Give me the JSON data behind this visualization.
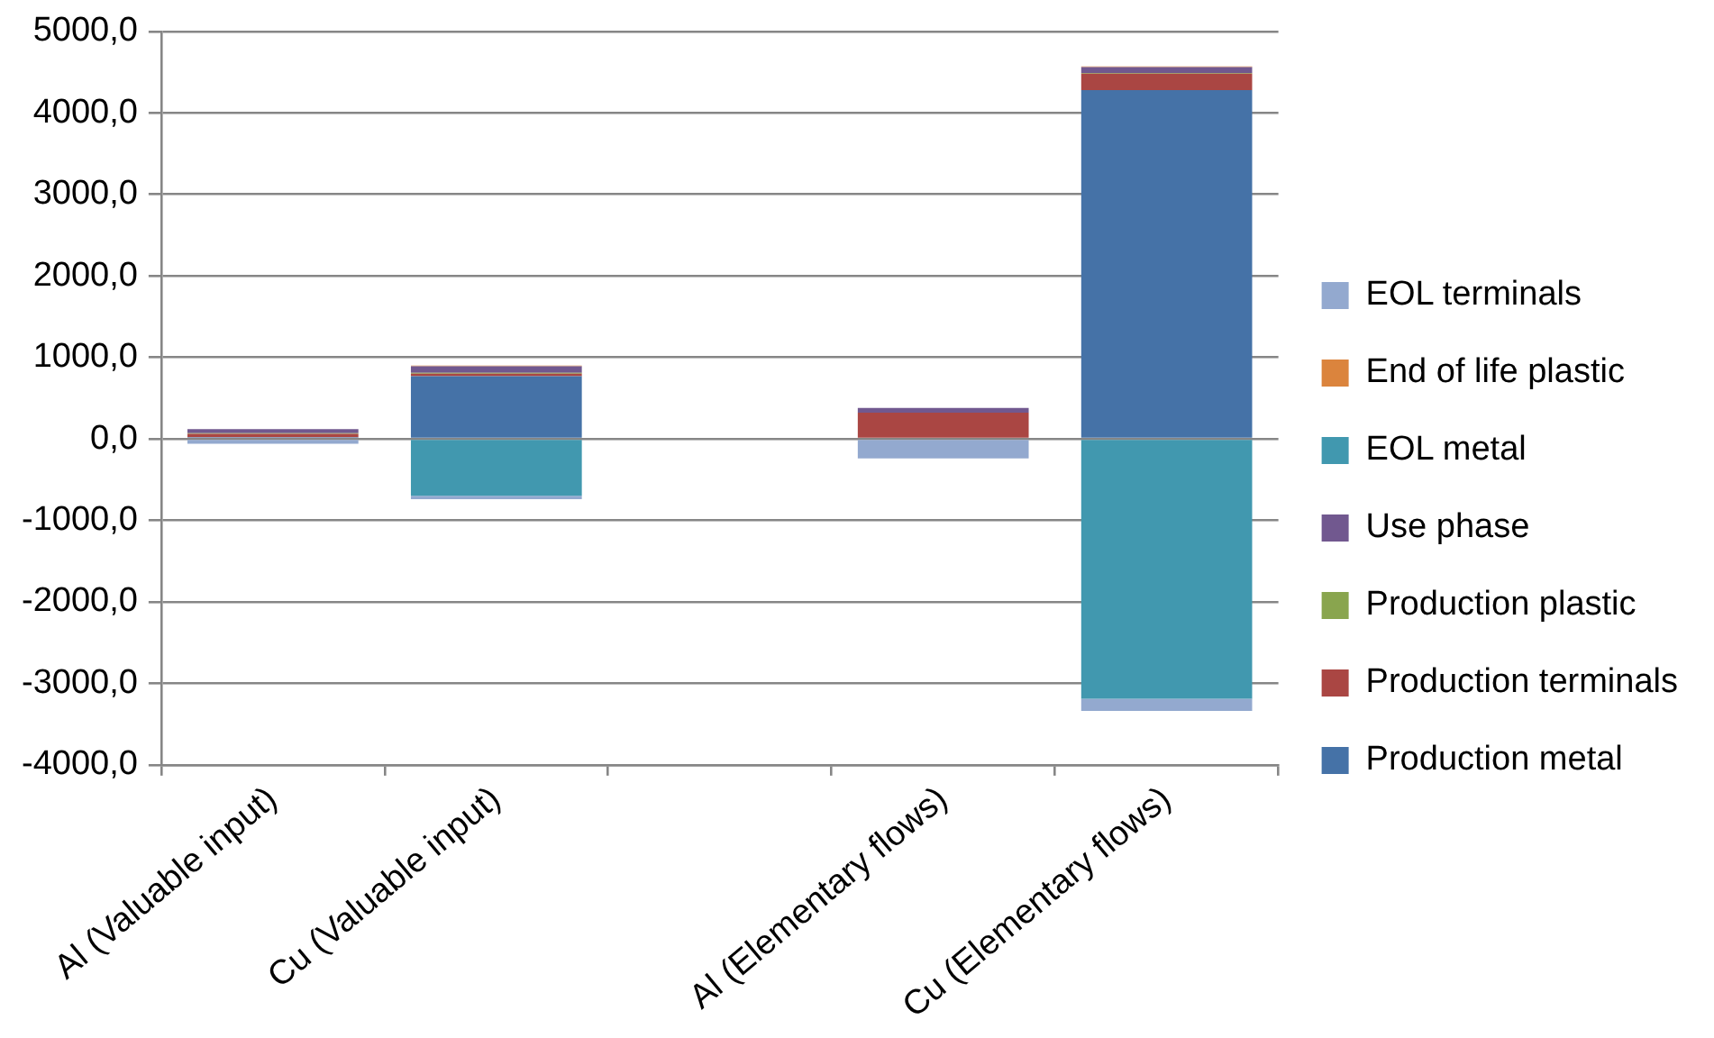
{
  "chart_data": {
    "type": "bar",
    "stacked": true,
    "categories": [
      "Al (Valuable input)",
      "Cu (Valuable input)",
      null,
      "Al (Elementary flows)",
      "Cu (Elementary flows)"
    ],
    "series": [
      {
        "name": "Production metal",
        "color": "#4572a7",
        "values": [
          20,
          770,
          null,
          0,
          4280
        ]
      },
      {
        "name": "Production terminals",
        "color": "#aa4643",
        "values": [
          40,
          30,
          null,
          320,
          200
        ]
      },
      {
        "name": "Production plastic",
        "color": "#89a54e",
        "values": [
          10,
          10,
          null,
          0,
          10
        ]
      },
      {
        "name": "Use phase",
        "color": "#71588f",
        "values": [
          50,
          80,
          null,
          60,
          70
        ]
      },
      {
        "name": "EOL metal",
        "color": "#4198af",
        "values": [
          0,
          -700,
          null,
          0,
          -3190
        ]
      },
      {
        "name": "End of life plastic",
        "color": "#db843d",
        "values": [
          0,
          10,
          null,
          0,
          10
        ]
      },
      {
        "name": "EOL terminals",
        "color": "#93a9cf",
        "values": [
          -60,
          -40,
          null,
          -240,
          -150
        ]
      }
    ],
    "ylim": [
      -4000,
      5000
    ],
    "yticks": [
      {
        "value": -4000,
        "label": "-4000,0"
      },
      {
        "value": -3000,
        "label": "-3000,0"
      },
      {
        "value": -2000,
        "label": "-2000,0"
      },
      {
        "value": -1000,
        "label": "-1000,0"
      },
      {
        "value": 0,
        "label": "0,0"
      },
      {
        "value": 1000,
        "label": "1000,0"
      },
      {
        "value": 2000,
        "label": "2000,0"
      },
      {
        "value": 3000,
        "label": "3000,0"
      },
      {
        "value": 4000,
        "label": "4000,0"
      },
      {
        "value": 5000,
        "label": "5000,0"
      }
    ],
    "grid": "y",
    "legend": "right"
  }
}
